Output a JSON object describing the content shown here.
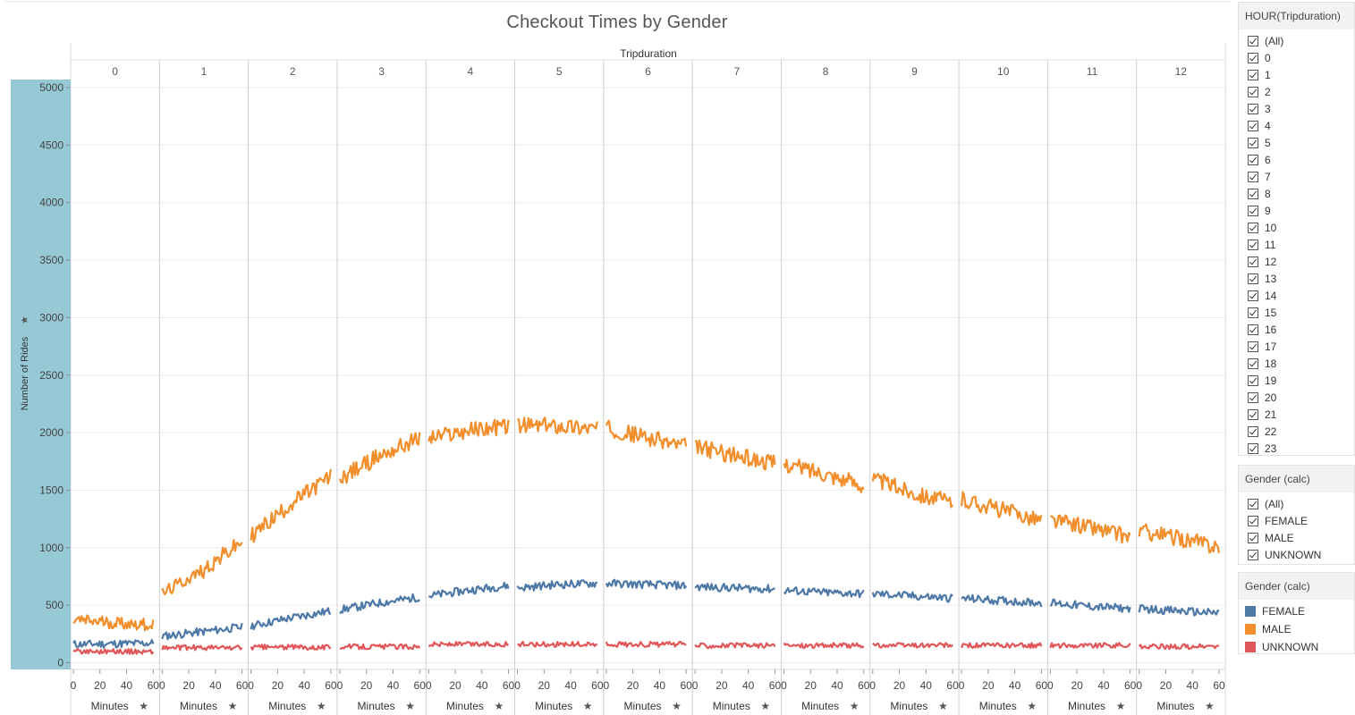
{
  "colors": {
    "axis_band": "#96c9d5",
    "grid": "#ececec",
    "divider": "#cfcfcf",
    "FEMALE": "#4e79a7",
    "MALE": "#f28e2b",
    "UNKNOWN": "#e15759"
  },
  "chart_data": {
    "type": "line",
    "title": "Checkout Times by Gender",
    "column_header": "Tripduration",
    "ylabel": "Number of Rides",
    "ylim": [
      0,
      5000
    ],
    "yticks": [
      0,
      500,
      1000,
      1500,
      2000,
      2500,
      3000,
      3500,
      4000,
      4500,
      5000
    ],
    "panels": [
      "0",
      "1",
      "2",
      "3",
      "4",
      "5",
      "6",
      "7",
      "8",
      "9",
      "10",
      "11",
      "12"
    ],
    "panel_x_label": "Minutes",
    "panel_x_ticks": [
      "0",
      "20",
      "40",
      "60"
    ],
    "panel_x_range": [
      0,
      60
    ],
    "series_note_points": "per panel [minute 0, minute 30, minute 60] approximate values",
    "series": [
      {
        "name": "FEMALE",
        "panels": [
          [
            160,
            165,
            170
          ],
          [
            230,
            270,
            310
          ],
          [
            320,
            390,
            450
          ],
          [
            460,
            520,
            570
          ],
          [
            580,
            630,
            670
          ],
          [
            650,
            680,
            690
          ],
          [
            690,
            680,
            670
          ],
          [
            660,
            650,
            640
          ],
          [
            630,
            610,
            600
          ],
          [
            600,
            580,
            560
          ],
          [
            560,
            540,
            520
          ],
          [
            520,
            490,
            470
          ],
          [
            470,
            450,
            430
          ]
        ]
      },
      {
        "name": "MALE",
        "panels": [
          [
            370,
            350,
            330
          ],
          [
            600,
            800,
            1050
          ],
          [
            1100,
            1380,
            1620
          ],
          [
            1600,
            1800,
            1950
          ],
          [
            1950,
            2020,
            2060
          ],
          [
            2060,
            2060,
            2040
          ],
          [
            2040,
            1960,
            1880
          ],
          [
            1880,
            1800,
            1730
          ],
          [
            1730,
            1650,
            1540
          ],
          [
            1600,
            1480,
            1390
          ],
          [
            1420,
            1330,
            1240
          ],
          [
            1240,
            1180,
            1090
          ],
          [
            1150,
            1080,
            1010
          ]
        ]
      },
      {
        "name": "UNKNOWN",
        "panels": [
          [
            100,
            100,
            95
          ],
          [
            130,
            130,
            130
          ],
          [
            135,
            135,
            135
          ],
          [
            140,
            140,
            140
          ],
          [
            160,
            160,
            160
          ],
          [
            160,
            160,
            160
          ],
          [
            160,
            160,
            160
          ],
          [
            150,
            150,
            150
          ],
          [
            150,
            150,
            150
          ],
          [
            150,
            150,
            150
          ],
          [
            150,
            150,
            150
          ],
          [
            150,
            150,
            150
          ],
          [
            140,
            140,
            140
          ]
        ]
      }
    ]
  },
  "filters": {
    "hour": {
      "title": "HOUR(Tripduration)",
      "items": [
        "(All)",
        "0",
        "1",
        "2",
        "3",
        "4",
        "5",
        "6",
        "7",
        "8",
        "9",
        "10",
        "11",
        "12",
        "13",
        "14",
        "15",
        "16",
        "17",
        "18",
        "19",
        "20",
        "21",
        "22",
        "23"
      ]
    },
    "gender": {
      "title": "Gender (calc)",
      "items": [
        "(All)",
        "FEMALE",
        "MALE",
        "UNKNOWN"
      ]
    }
  },
  "legend": {
    "title": "Gender (calc)",
    "items": [
      {
        "label": "FEMALE",
        "color": "#4e79a7"
      },
      {
        "label": "MALE",
        "color": "#f28e2b"
      },
      {
        "label": "UNKNOWN",
        "color": "#e15759"
      }
    ]
  }
}
